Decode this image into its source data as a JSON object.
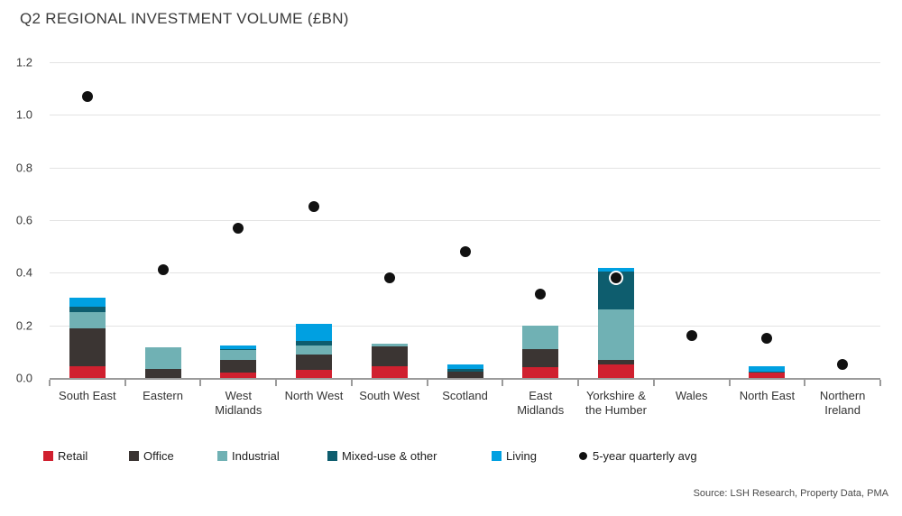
{
  "page": {
    "title": "Q2 REGIONAL INVESTMENT VOLUME (£BN)",
    "source": "Source: LSH Research, Property Data, PMA"
  },
  "chart_data": {
    "type": "bar",
    "stacked": true,
    "title": "Q2 REGIONAL INVESTMENT VOLUME (£BN)",
    "ylabel": "£bn",
    "ylim": [
      0,
      1.2
    ],
    "yticks": [
      "0.0",
      "0.2",
      "0.4",
      "0.6",
      "0.8",
      "1.0",
      "1.2"
    ],
    "grid": "horizontal",
    "legend_position": "bottom",
    "categories": [
      "South East",
      "Eastern",
      "West Midlands",
      "North West",
      "South West",
      "Scotland",
      "East Midlands",
      "Yorkshire & the Humber",
      "Wales",
      "North East",
      "Northern Ireland"
    ],
    "series": [
      {
        "name": "Retail",
        "color": "#d0202f",
        "values": [
          0.045,
          0,
          0.02,
          0.03,
          0.045,
          0,
          0.04,
          0.05,
          0,
          0.02,
          0
        ]
      },
      {
        "name": "Office",
        "color": "#3b3533",
        "values": [
          0.145,
          0.035,
          0.05,
          0.06,
          0.075,
          0.025,
          0.07,
          0.02,
          0,
          0,
          0
        ]
      },
      {
        "name": "Industrial",
        "color": "#70b1b4",
        "values": [
          0.06,
          0.08,
          0.035,
          0.035,
          0.01,
          0,
          0.09,
          0.19,
          0,
          0,
          0
        ]
      },
      {
        "name": "Mixed-use & other",
        "color": "#0e5d6e",
        "values": [
          0.02,
          0,
          0.005,
          0.015,
          0,
          0.01,
          0,
          0.145,
          0,
          0.005,
          0
        ]
      },
      {
        "name": "Living",
        "color": "#00a0e1",
        "values": [
          0.035,
          0,
          0.015,
          0.065,
          0,
          0.015,
          0,
          0.015,
          0,
          0.02,
          0
        ]
      }
    ],
    "dots": {
      "name": "5-year quarterly avg",
      "color": "#111111",
      "values": [
        1.07,
        0.41,
        0.57,
        0.65,
        0.38,
        0.48,
        0.32,
        0.38,
        0.16,
        0.15,
        0.05
      ]
    }
  }
}
